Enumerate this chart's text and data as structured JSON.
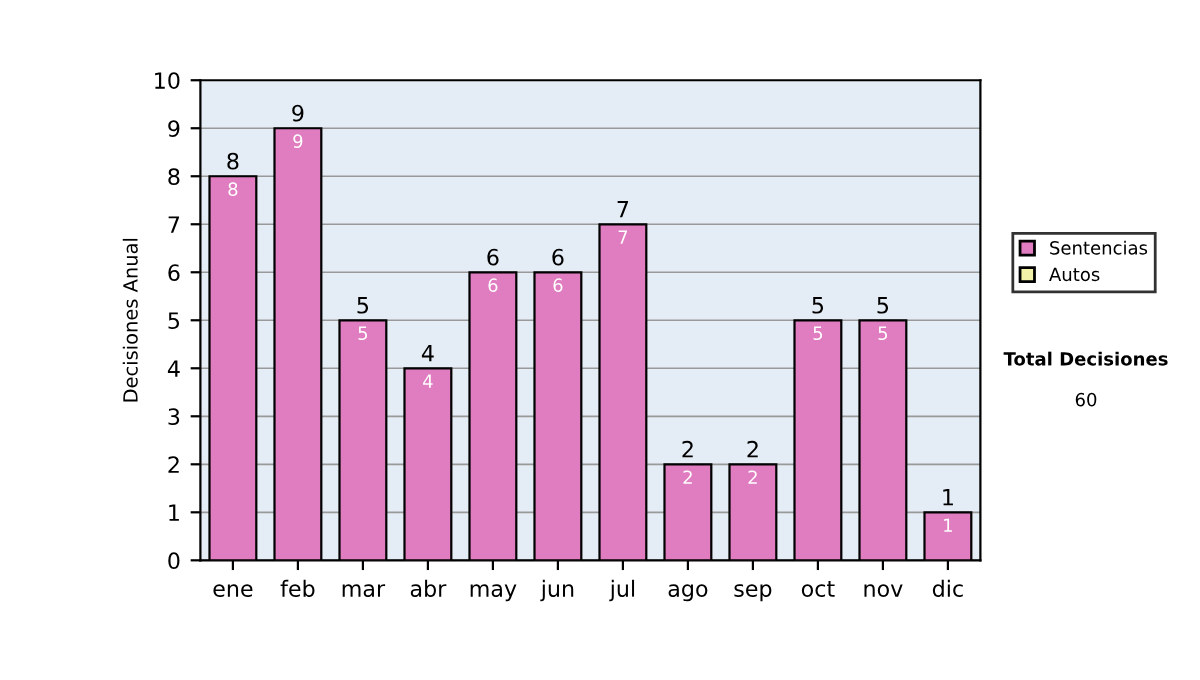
{
  "chart_data": {
    "type": "bar",
    "ylabel": "Decisiones Anual",
    "categories": [
      "ene",
      "feb",
      "mar",
      "abr",
      "may",
      "jun",
      "jul",
      "ago",
      "sep",
      "oct",
      "nov",
      "dic"
    ],
    "series": [
      {
        "name": "Sentencias",
        "color": "#e07cc0",
        "values": [
          8,
          9,
          5,
          4,
          6,
          6,
          7,
          2,
          2,
          5,
          5,
          1
        ],
        "value_labels": [
          "8",
          "9",
          "5",
          "4",
          "6",
          "6",
          "7",
          "2",
          "2",
          "5",
          "5",
          "1"
        ]
      },
      {
        "name": "Autos",
        "color": "#f2f2a8",
        "values": [
          null,
          null,
          null,
          null,
          null,
          null,
          null,
          null,
          null,
          null,
          null,
          null
        ]
      }
    ],
    "stacked": true,
    "totals": [
      "8",
      "9",
      "5",
      "4",
      "6",
      "6",
      "7",
      "2",
      "2",
      "5",
      "5",
      "1"
    ],
    "ylim": [
      0,
      10
    ],
    "yticks": [
      0,
      1,
      2,
      3,
      4,
      5,
      6,
      7,
      8,
      9,
      10
    ],
    "grid": "y",
    "legend": "right",
    "annotations": [
      "Total Decisiones",
      "60"
    ]
  }
}
